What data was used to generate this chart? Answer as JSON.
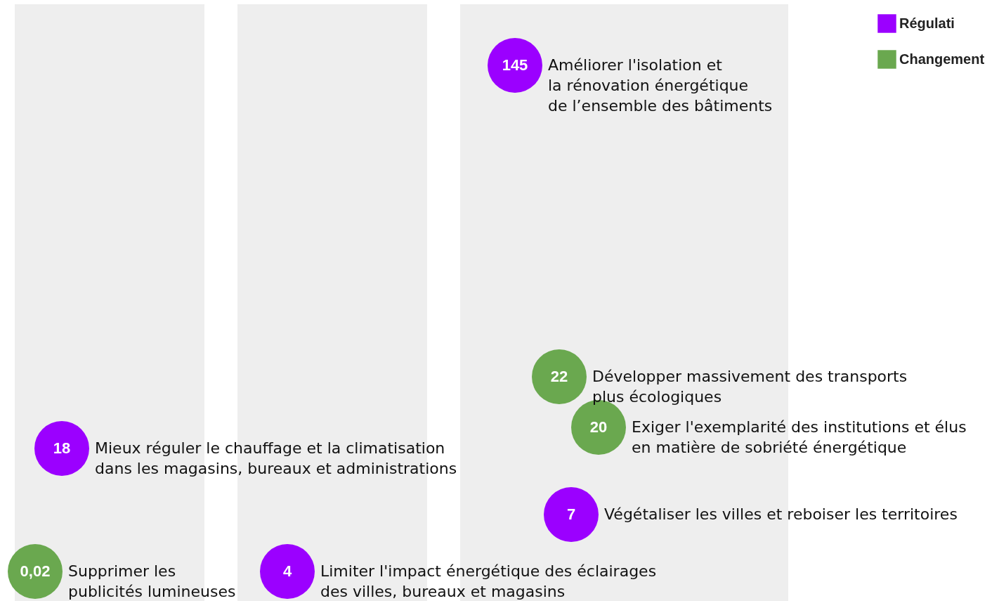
{
  "chart_data": {
    "type": "other",
    "legend": "top right",
    "categories": [
      "Améliorer l'isolation et\nla rénovation énergétique\nde l’ensemble des bâtiments",
      "Développer massivement des transports\nplus écologiques",
      "Exiger l'exemplarité des institutions et élus\nen matière de sobriété énergétique",
      "Mieux réguler le chauffage et la climatisation\ndans les magasins, bureaux et administrations",
      "Végétaliser les villes et reboiser les territoires",
      "Supprimer les\npublicités lumineuses",
      "Limiter l'impact énergétique des éclairages\ndes villes, bureaux et magasins"
    ],
    "series": [
      {
        "name": "Régulati",
        "color": "#9b00ff",
        "values": [
          145,
          null,
          null,
          18,
          7,
          null,
          4
        ],
        "value_labels": [
          "145",
          null,
          null,
          "18",
          "7",
          null,
          "4"
        ]
      },
      {
        "name": "Changement",
        "color": "#6aa84f",
        "values": [
          null,
          22,
          20,
          null,
          null,
          0.02,
          null
        ],
        "value_labels": [
          null,
          "22",
          "20",
          null,
          null,
          "0,02",
          null
        ]
      }
    ]
  }
}
